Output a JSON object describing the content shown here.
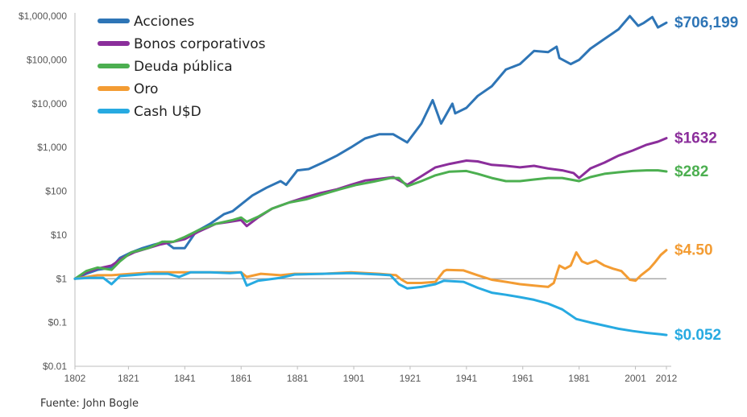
{
  "chart_data": {
    "type": "line",
    "title": "",
    "xlabel": "",
    "ylabel": "",
    "y_scale": "log",
    "ylim": [
      0.01,
      1000000
    ],
    "xlim": [
      1802,
      2012
    ],
    "grid": false,
    "legend_placement": "top-left",
    "x_ticks": [
      1802,
      1821,
      1841,
      1861,
      1881,
      1901,
      1921,
      1941,
      1961,
      1981,
      2001,
      2012
    ],
    "y_ticks": [
      {
        "value": 0.01,
        "label": "$0.01"
      },
      {
        "value": 0.1,
        "label": "$0.1"
      },
      {
        "value": 1,
        "label": "$1"
      },
      {
        "value": 10,
        "label": "$10"
      },
      {
        "value": 100,
        "label": "$100"
      },
      {
        "value": 1000,
        "label": "$1,000"
      },
      {
        "value": 10000,
        "label": "$10,000"
      },
      {
        "value": 100000,
        "label": "$100,000"
      },
      {
        "value": 1000000,
        "label": "$1,000,000"
      }
    ],
    "reference_line": 1,
    "series": [
      {
        "name": "Acciones",
        "color": "#2e75b6",
        "end_label": "$706,199",
        "points": [
          [
            1802,
            1
          ],
          [
            1806,
            1.3
          ],
          [
            1810,
            1.6
          ],
          [
            1815,
            1.8
          ],
          [
            1818,
            3
          ],
          [
            1822,
            4
          ],
          [
            1826,
            5
          ],
          [
            1830,
            6
          ],
          [
            1834,
            7
          ],
          [
            1837,
            5
          ],
          [
            1841,
            5
          ],
          [
            1845,
            12
          ],
          [
            1850,
            18
          ],
          [
            1855,
            30
          ],
          [
            1858,
            35
          ],
          [
            1861,
            50
          ],
          [
            1865,
            80
          ],
          [
            1870,
            120
          ],
          [
            1875,
            170
          ],
          [
            1877,
            140
          ],
          [
            1881,
            300
          ],
          [
            1885,
            320
          ],
          [
            1890,
            450
          ],
          [
            1895,
            650
          ],
          [
            1900,
            1000
          ],
          [
            1905,
            1600
          ],
          [
            1910,
            2000
          ],
          [
            1915,
            2000
          ],
          [
            1920,
            1300
          ],
          [
            1925,
            3500
          ],
          [
            1929,
            12000
          ],
          [
            1932,
            3500
          ],
          [
            1936,
            10000
          ],
          [
            1937,
            6000
          ],
          [
            1941,
            8000
          ],
          [
            1945,
            15000
          ],
          [
            1950,
            25000
          ],
          [
            1955,
            60000
          ],
          [
            1960,
            80000
          ],
          [
            1965,
            160000
          ],
          [
            1970,
            150000
          ],
          [
            1973,
            200000
          ],
          [
            1974,
            110000
          ],
          [
            1978,
            80000
          ],
          [
            1981,
            100000
          ],
          [
            1985,
            180000
          ],
          [
            1990,
            300000
          ],
          [
            1995,
            500000
          ],
          [
            1999,
            1000000
          ],
          [
            2002,
            600000
          ],
          [
            2004,
            700000
          ],
          [
            2007,
            950000
          ],
          [
            2009,
            550000
          ],
          [
            2012,
            706199
          ]
        ]
      },
      {
        "name": "Bonos corporativos",
        "color": "#8b2e9b",
        "end_label": "$1632",
        "points": [
          [
            1802,
            1
          ],
          [
            1806,
            1.4
          ],
          [
            1810,
            1.7
          ],
          [
            1815,
            2
          ],
          [
            1819,
            3
          ],
          [
            1823,
            4
          ],
          [
            1828,
            5
          ],
          [
            1832,
            6
          ],
          [
            1837,
            7
          ],
          [
            1841,
            8
          ],
          [
            1846,
            12
          ],
          [
            1852,
            18
          ],
          [
            1857,
            20
          ],
          [
            1861,
            22
          ],
          [
            1863,
            16
          ],
          [
            1867,
            25
          ],
          [
            1872,
            40
          ],
          [
            1878,
            55
          ],
          [
            1883,
            70
          ],
          [
            1889,
            90
          ],
          [
            1895,
            110
          ],
          [
            1900,
            140
          ],
          [
            1905,
            175
          ],
          [
            1910,
            190
          ],
          [
            1915,
            210
          ],
          [
            1920,
            140
          ],
          [
            1925,
            220
          ],
          [
            1930,
            350
          ],
          [
            1935,
            420
          ],
          [
            1941,
            500
          ],
          [
            1945,
            480
          ],
          [
            1950,
            400
          ],
          [
            1955,
            380
          ],
          [
            1960,
            350
          ],
          [
            1965,
            380
          ],
          [
            1970,
            330
          ],
          [
            1975,
            300
          ],
          [
            1979,
            260
          ],
          [
            1981,
            200
          ],
          [
            1985,
            330
          ],
          [
            1990,
            450
          ],
          [
            1995,
            650
          ],
          [
            2000,
            850
          ],
          [
            2005,
            1150
          ],
          [
            2009,
            1350
          ],
          [
            2012,
            1632
          ]
        ]
      },
      {
        "name": "Deuda pública",
        "color": "#4caf50",
        "end_label": "$282",
        "points": [
          [
            1802,
            1
          ],
          [
            1806,
            1.5
          ],
          [
            1810,
            1.8
          ],
          [
            1815,
            1.6
          ],
          [
            1818,
            2.5
          ],
          [
            1822,
            4
          ],
          [
            1828,
            5
          ],
          [
            1833,
            7
          ],
          [
            1837,
            7
          ],
          [
            1841,
            9
          ],
          [
            1846,
            13
          ],
          [
            1852,
            18
          ],
          [
            1858,
            22
          ],
          [
            1861,
            25
          ],
          [
            1863,
            20
          ],
          [
            1867,
            26
          ],
          [
            1872,
            40
          ],
          [
            1878,
            55
          ],
          [
            1884,
            65
          ],
          [
            1890,
            85
          ],
          [
            1896,
            110
          ],
          [
            1902,
            140
          ],
          [
            1908,
            165
          ],
          [
            1914,
            200
          ],
          [
            1917,
            200
          ],
          [
            1920,
            130
          ],
          [
            1925,
            170
          ],
          [
            1930,
            230
          ],
          [
            1935,
            280
          ],
          [
            1941,
            290
          ],
          [
            1945,
            250
          ],
          [
            1950,
            200
          ],
          [
            1955,
            170
          ],
          [
            1960,
            170
          ],
          [
            1965,
            185
          ],
          [
            1970,
            200
          ],
          [
            1975,
            200
          ],
          [
            1981,
            170
          ],
          [
            1985,
            210
          ],
          [
            1990,
            250
          ],
          [
            1995,
            270
          ],
          [
            2000,
            290
          ],
          [
            2005,
            300
          ],
          [
            2009,
            300
          ],
          [
            2012,
            282
          ]
        ]
      },
      {
        "name": "Oro",
        "color": "#f39c33",
        "end_label": "$4.50",
        "points": [
          [
            1802,
            1
          ],
          [
            1810,
            1.2
          ],
          [
            1815,
            1.2
          ],
          [
            1822,
            1.3
          ],
          [
            1830,
            1.4
          ],
          [
            1840,
            1.4
          ],
          [
            1850,
            1.4
          ],
          [
            1861,
            1.4
          ],
          [
            1863,
            1.1
          ],
          [
            1868,
            1.3
          ],
          [
            1875,
            1.2
          ],
          [
            1880,
            1.3
          ],
          [
            1890,
            1.3
          ],
          [
            1900,
            1.4
          ],
          [
            1910,
            1.3
          ],
          [
            1916,
            1.2
          ],
          [
            1918,
            0.95
          ],
          [
            1920,
            0.8
          ],
          [
            1925,
            0.8
          ],
          [
            1930,
            0.85
          ],
          [
            1933,
            1.5
          ],
          [
            1934,
            1.6
          ],
          [
            1940,
            1.55
          ],
          [
            1945,
            1.2
          ],
          [
            1950,
            0.95
          ],
          [
            1955,
            0.85
          ],
          [
            1960,
            0.75
          ],
          [
            1965,
            0.7
          ],
          [
            1970,
            0.65
          ],
          [
            1972,
            0.8
          ],
          [
            1974,
            2
          ],
          [
            1976,
            1.7
          ],
          [
            1978,
            2
          ],
          [
            1980,
            4
          ],
          [
            1982,
            2.5
          ],
          [
            1984,
            2.2
          ],
          [
            1987,
            2.6
          ],
          [
            1990,
            2
          ],
          [
            1993,
            1.7
          ],
          [
            1996,
            1.5
          ],
          [
            1999,
            0.95
          ],
          [
            2001,
            0.9
          ],
          [
            2003,
            1.2
          ],
          [
            2006,
            1.7
          ],
          [
            2008,
            2.4
          ],
          [
            2010,
            3.5
          ],
          [
            2012,
            4.5
          ]
        ]
      },
      {
        "name": "Cash U$D",
        "color": "#27aae1",
        "end_label": "$0.052",
        "points": [
          [
            1802,
            1
          ],
          [
            1807,
            1.05
          ],
          [
            1812,
            1.05
          ],
          [
            1815,
            0.75
          ],
          [
            1818,
            1.15
          ],
          [
            1822,
            1.2
          ],
          [
            1828,
            1.3
          ],
          [
            1835,
            1.3
          ],
          [
            1839,
            1.1
          ],
          [
            1843,
            1.4
          ],
          [
            1850,
            1.4
          ],
          [
            1857,
            1.35
          ],
          [
            1861,
            1.4
          ],
          [
            1863,
            0.7
          ],
          [
            1867,
            0.9
          ],
          [
            1875,
            1.05
          ],
          [
            1880,
            1.25
          ],
          [
            1890,
            1.3
          ],
          [
            1900,
            1.35
          ],
          [
            1905,
            1.3
          ],
          [
            1910,
            1.25
          ],
          [
            1914,
            1.2
          ],
          [
            1917,
            0.75
          ],
          [
            1920,
            0.6
          ],
          [
            1925,
            0.65
          ],
          [
            1930,
            0.75
          ],
          [
            1933,
            0.9
          ],
          [
            1940,
            0.85
          ],
          [
            1945,
            0.62
          ],
          [
            1950,
            0.48
          ],
          [
            1955,
            0.43
          ],
          [
            1960,
            0.38
          ],
          [
            1965,
            0.33
          ],
          [
            1970,
            0.27
          ],
          [
            1975,
            0.2
          ],
          [
            1980,
            0.12
          ],
          [
            1985,
            0.1
          ],
          [
            1990,
            0.085
          ],
          [
            1995,
            0.072
          ],
          [
            2000,
            0.064
          ],
          [
            2005,
            0.058
          ],
          [
            2010,
            0.054
          ],
          [
            2012,
            0.052
          ]
        ]
      }
    ]
  },
  "source": "Fuente: John Bogle"
}
